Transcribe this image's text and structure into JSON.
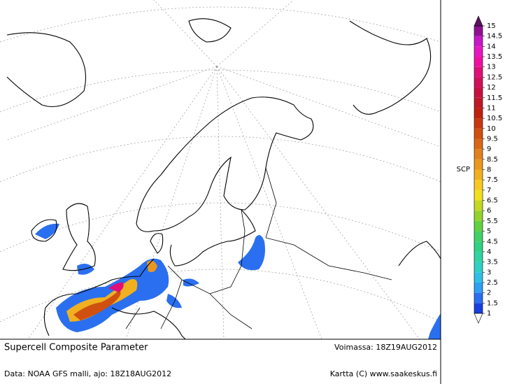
{
  "title": "Supercell Composite Parameter",
  "valid_time": "Voimassa: 18Z19AUG2012",
  "source": "Data: NOAA GFS malli, ajo: 18Z18AUG2012",
  "credit": "Kartta (C) www.saakeskus.fi",
  "colorbar": {
    "label": "SCP",
    "ticks": [
      1,
      1.5,
      2,
      2.5,
      3,
      3.5,
      4,
      4.5,
      5,
      5.5,
      6,
      6.5,
      7,
      7.5,
      8,
      8.5,
      9,
      9.5,
      10,
      10.5,
      11,
      11.5,
      12,
      12.5,
      13,
      13.5,
      14,
      14.5,
      15
    ],
    "colors": [
      "#1a3fe0",
      "#2a6ff0",
      "#2f9ff2",
      "#30bfe4",
      "#30d0c4",
      "#30d4a4",
      "#30d282",
      "#42d064",
      "#62d040",
      "#92d22e",
      "#c2d824",
      "#f0e020",
      "#f8c820",
      "#f0b020",
      "#e89820",
      "#e08020",
      "#d86818",
      "#d05010",
      "#c83810",
      "#c02010",
      "#c01828",
      "#c81040",
      "#d01058",
      "#e01078",
      "#f010a0",
      "#e818c0",
      "#c818c8",
      "#901090"
    ],
    "over_color": "#601060",
    "under_color": "#ffffff"
  }
}
